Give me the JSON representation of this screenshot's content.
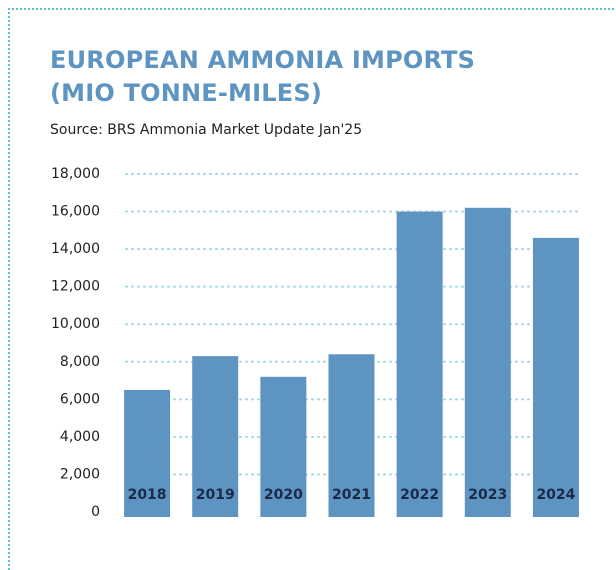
{
  "chart_data": {
    "type": "bar",
    "title": "EUROPEAN AMMONIA IMPORTS (MIO TONNE-MILES)",
    "subtitle": "Source: BRS Ammonia Market Update Jan'25",
    "categories": [
      "2018",
      "2019",
      "2020",
      "2021",
      "2022",
      "2023",
      "2024"
    ],
    "values": [
      6500,
      8300,
      7200,
      8400,
      16000,
      16200,
      14600
    ],
    "color": "#5d94c2",
    "ylim": [
      0,
      18000
    ],
    "yticks": [
      0,
      {
        "value": 2000,
        "label": "2,000"
      },
      {
        "value": 4000,
        "label": "4,000"
      },
      {
        "value": 6000,
        "label": "6,000"
      },
      {
        "value": 8000,
        "label": "8,000"
      },
      {
        "value": 10000,
        "label": "10,000"
      },
      {
        "value": 12000,
        "label": "12,000"
      },
      {
        "value": 14000,
        "label": "14,000"
      },
      {
        "value": 16000,
        "label": "16,000"
      },
      {
        "value": 18000,
        "label": "18,000"
      }
    ],
    "grid": true
  }
}
